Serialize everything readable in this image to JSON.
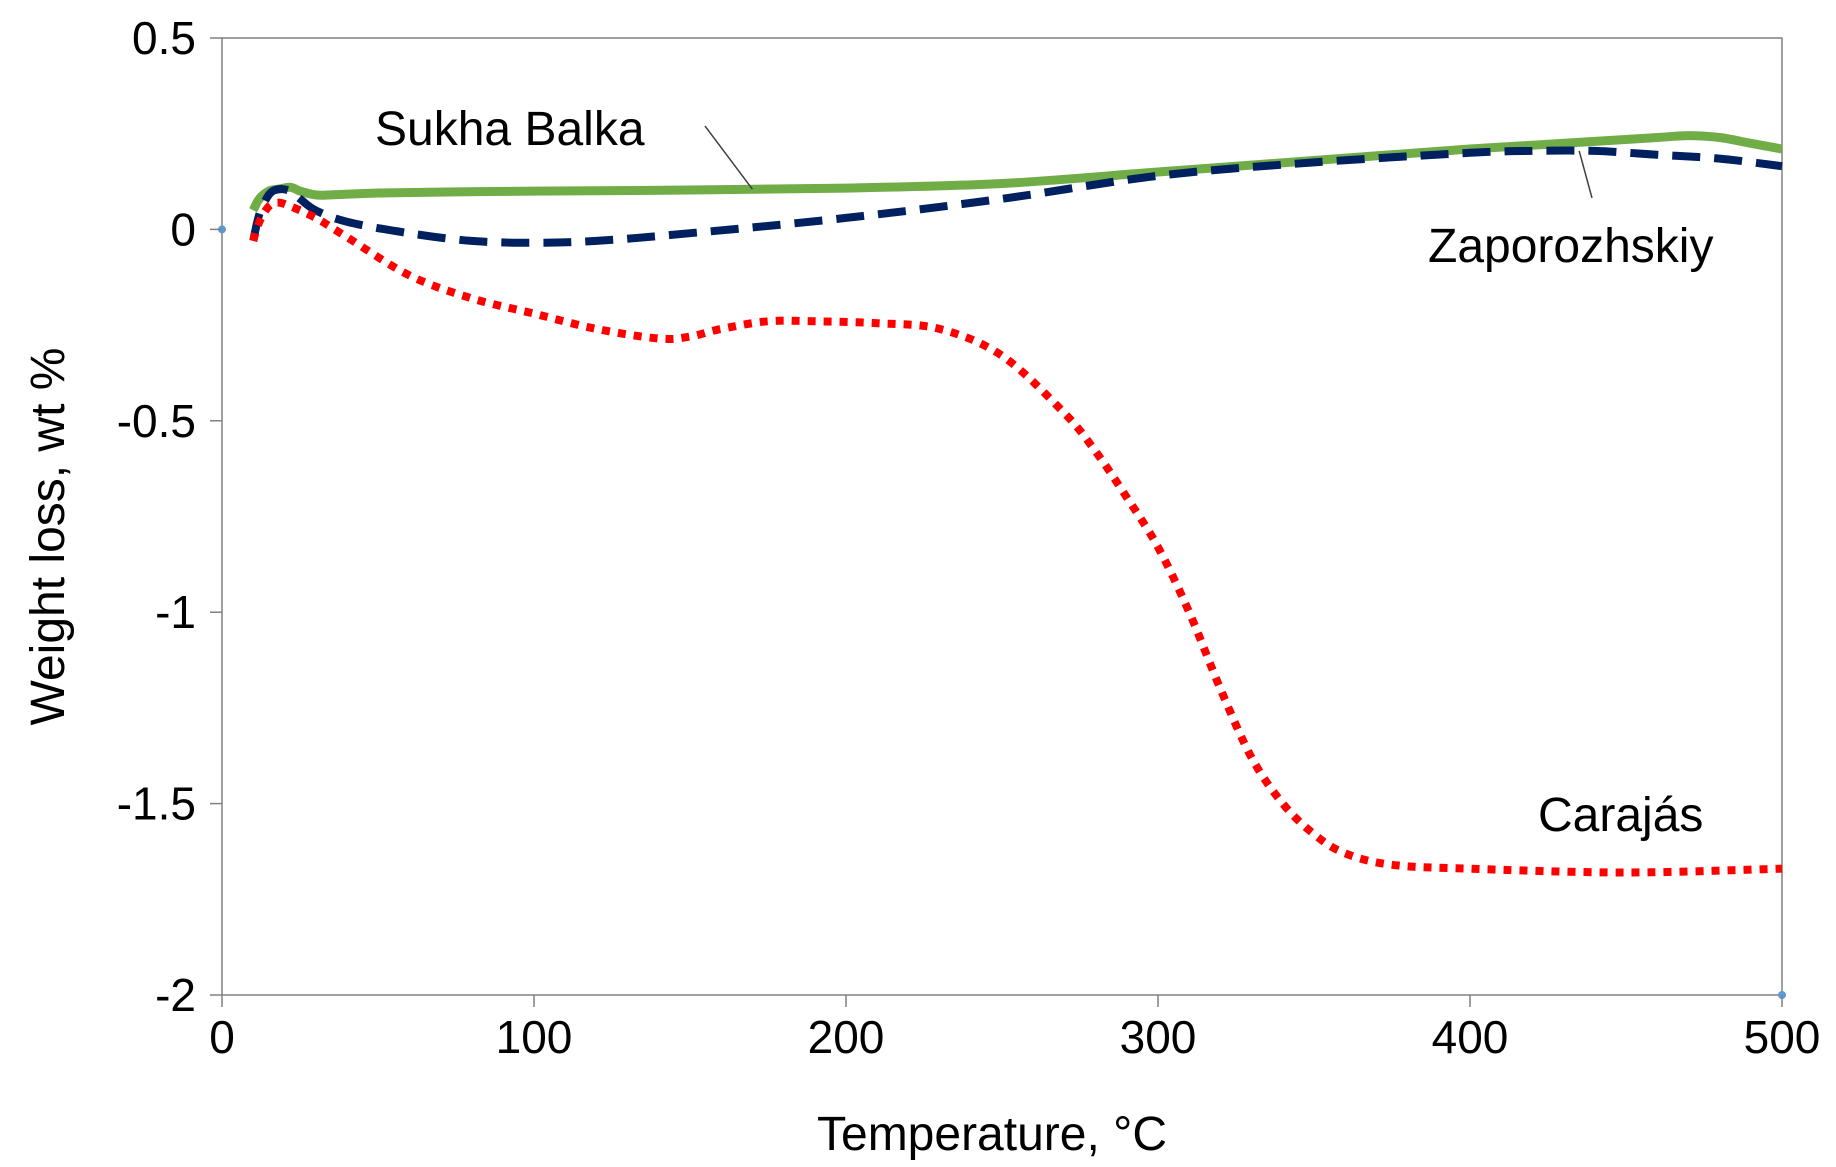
{
  "chart_data": {
    "type": "line",
    "title": "",
    "xlabel": "Temperature, °C",
    "ylabel": "Weight loss, wt %",
    "xlim": [
      0,
      500
    ],
    "ylim": [
      -2,
      0.5
    ],
    "xticks": [
      0,
      100,
      200,
      300,
      400,
      500
    ],
    "yticks": [
      0.5,
      0,
      -0.5,
      -1,
      -1.5,
      -2
    ],
    "ytick_labels": [
      "0.5",
      "0",
      "-0.5",
      "-1",
      "-1.5",
      "-2"
    ],
    "grid": false,
    "legend": "none (inline series labels)",
    "series": [
      {
        "name": "Sukha Balka",
        "color": "#70ad47",
        "style": "solid",
        "x": [
          10,
          12,
          15,
          18,
          22,
          25,
          30,
          35,
          50,
          75,
          100,
          150,
          200,
          250,
          300,
          350,
          400,
          440,
          460,
          470,
          480,
          490,
          500
        ],
        "y": [
          0.05,
          0.08,
          0.1,
          0.105,
          0.11,
          0.1,
          0.09,
          0.09,
          0.095,
          0.098,
          0.1,
          0.103,
          0.108,
          0.12,
          0.15,
          0.18,
          0.21,
          0.23,
          0.24,
          0.245,
          0.24,
          0.225,
          0.21
        ]
      },
      {
        "name": "Zaporozhskiy",
        "color": "#002060",
        "style": "dashed",
        "x": [
          10,
          12,
          15,
          18,
          22,
          25,
          30,
          40,
          60,
          80,
          100,
          120,
          150,
          200,
          250,
          300,
          350,
          400,
          420,
          440,
          460,
          480,
          500
        ],
        "y": [
          -0.03,
          0.04,
          0.09,
          0.105,
          0.1,
          0.08,
          0.05,
          0.02,
          -0.01,
          -0.03,
          -0.035,
          -0.03,
          -0.01,
          0.03,
          0.08,
          0.14,
          0.175,
          0.2,
          0.205,
          0.205,
          0.195,
          0.185,
          0.165
        ]
      },
      {
        "name": "Carajás",
        "color": "#ff0000",
        "style": "dotted",
        "x": [
          10,
          12,
          15,
          18,
          22,
          30,
          40,
          60,
          80,
          100,
          120,
          140,
          150,
          160,
          175,
          190,
          210,
          230,
          250,
          270,
          280,
          290,
          300,
          310,
          320,
          330,
          340,
          350,
          360,
          375,
          400,
          450,
          500
        ],
        "y": [
          -0.03,
          0.02,
          0.06,
          0.07,
          0.06,
          0.03,
          -0.02,
          -0.12,
          -0.18,
          -0.22,
          -0.26,
          -0.285,
          -0.28,
          -0.26,
          -0.24,
          -0.24,
          -0.245,
          -0.26,
          -0.33,
          -0.48,
          -0.58,
          -0.7,
          -0.83,
          -1.0,
          -1.2,
          -1.38,
          -1.5,
          -1.58,
          -1.63,
          -1.66,
          -1.67,
          -1.68,
          -1.67
        ]
      }
    ],
    "annotations": [
      {
        "text": "Sukha Balka",
        "points_to": "Sukha Balka",
        "at_x": 170
      },
      {
        "text": "Zaporozhskiy",
        "points_to": "Zaporozhskiy",
        "at_x": 435
      },
      {
        "text": "Carajás",
        "points_to": "Carajás"
      }
    ]
  }
}
